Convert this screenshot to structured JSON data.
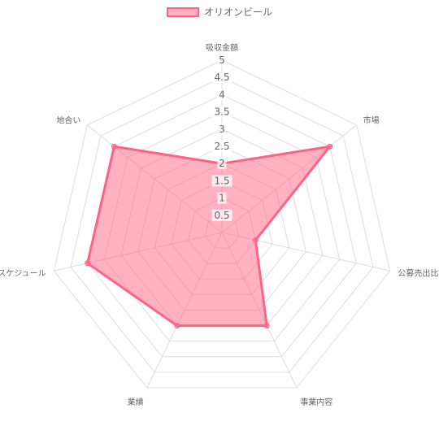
{
  "chart_data": {
    "type": "radar",
    "labels": [
      "吸収金額",
      "市場",
      "公募売出比",
      "事業内容",
      "業績",
      "スケジュール",
      "地合い"
    ],
    "series": [
      {
        "name": "オリオンビール",
        "values": [
          2,
          4,
          1,
          3,
          3,
          4,
          4
        ]
      }
    ],
    "r_ticks": [
      "0.5",
      "1",
      "1.5",
      "2",
      "2.5",
      "3",
      "3.5",
      "4",
      "4.5",
      "5"
    ],
    "r_range": [
      0,
      5
    ],
    "legend_position": "top",
    "colors": {
      "border": "#ff6384",
      "fill": "rgba(255,99,132,0.5)",
      "grid": "#dddddd",
      "text": "#666666"
    }
  }
}
